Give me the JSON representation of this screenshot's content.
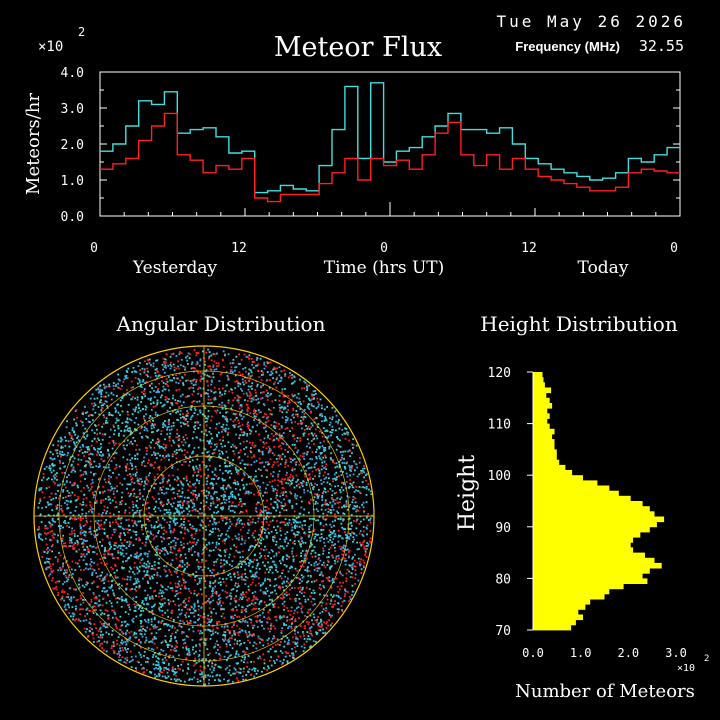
{
  "header": {
    "title": "Meteor Flux",
    "date": "Tue May 26 2026",
    "frequency_label": "Frequency (MHz)",
    "frequency_value": "32.55"
  },
  "chart_data": [
    {
      "type": "line",
      "title": "Meteor Flux",
      "ylabel": "Meteors/hr",
      "xlabel": "Time (hrs UT)",
      "y_multiplier": "×10",
      "y_multiplier_exp": "2",
      "ylim": [
        0,
        4
      ],
      "y_ticks": [
        "0.0",
        "1.0",
        "2.0",
        "3.0",
        "4.0"
      ],
      "x_ticks": [
        "0",
        "12",
        "0",
        "12",
        "0"
      ],
      "x_ticks_hours": [
        0,
        12,
        24,
        36,
        48
      ],
      "day_labels": [
        "Yesterday",
        "Today"
      ],
      "xlim": [
        0,
        48
      ],
      "series": [
        {
          "color": "#40e0e0",
          "step": true,
          "values": [
            1.8,
            2.0,
            2.5,
            3.2,
            3.1,
            3.45,
            2.3,
            2.4,
            2.45,
            2.2,
            1.75,
            1.8,
            0.65,
            0.7,
            0.85,
            0.75,
            0.7,
            1.4,
            2.4,
            3.6,
            1.6,
            3.7,
            1.5,
            1.8,
            1.9,
            2.2,
            2.5,
            2.85,
            2.4,
            2.4,
            2.3,
            2.45,
            2.0,
            1.6,
            1.45,
            1.3,
            1.2,
            1.1,
            1.0,
            1.05,
            1.2,
            1.6,
            1.5,
            1.7,
            1.9
          ]
        },
        {
          "color": "#ff2020",
          "step": true,
          "values": [
            1.3,
            1.45,
            1.6,
            2.1,
            2.5,
            2.85,
            1.7,
            1.55,
            1.2,
            1.4,
            1.3,
            1.6,
            0.5,
            0.4,
            0.6,
            0.6,
            0.6,
            0.9,
            1.2,
            1.6,
            1.0,
            1.6,
            1.4,
            1.55,
            1.3,
            1.7,
            2.3,
            2.6,
            1.7,
            1.4,
            1.7,
            1.3,
            1.6,
            1.3,
            1.1,
            1.0,
            0.9,
            0.8,
            0.7,
            0.7,
            0.8,
            1.2,
            1.3,
            1.25,
            1.2
          ]
        }
      ]
    },
    {
      "type": "scatter",
      "title": "Angular Distribution",
      "colors": [
        "#3fd8d8",
        "#3aa9e8",
        "#ff2020",
        "#ffd000"
      ]
    },
    {
      "type": "bar",
      "orientation": "horizontal",
      "title": "Height Distribution",
      "ylabel": "Height",
      "xlabel": "Number of Meteors",
      "x_multiplier": "×10",
      "x_multiplier_exp": "2",
      "xlim": [
        0,
        3
      ],
      "x_ticks": [
        "0.0",
        "1.0",
        "2.0",
        "3.0"
      ],
      "x_tick_values": [
        0,
        1,
        2,
        3
      ],
      "ylim": [
        70,
        120
      ],
      "y_ticks": [
        "70",
        "80",
        "90",
        "100",
        "110",
        "120"
      ],
      "y_tick_values": [
        70,
        80,
        90,
        100,
        110,
        120
      ],
      "color": "#ffff00",
      "bin_start": 70,
      "bin_size": 1,
      "values": [
        0.8,
        0.9,
        1.05,
        0.95,
        1.1,
        1.2,
        1.5,
        1.6,
        1.9,
        2.4,
        2.3,
        2.45,
        2.7,
        2.55,
        2.35,
        2.1,
        2.05,
        2.1,
        2.25,
        2.45,
        2.6,
        2.75,
        2.55,
        2.45,
        2.3,
        2.05,
        1.8,
        1.6,
        1.35,
        1.05,
        0.82,
        0.68,
        0.55,
        0.5,
        0.5,
        0.45,
        0.45,
        0.4,
        0.45,
        0.35,
        0.3,
        0.35,
        0.3,
        0.4,
        0.35,
        0.28,
        0.38,
        0.25,
        0.22,
        0.2
      ]
    }
  ]
}
